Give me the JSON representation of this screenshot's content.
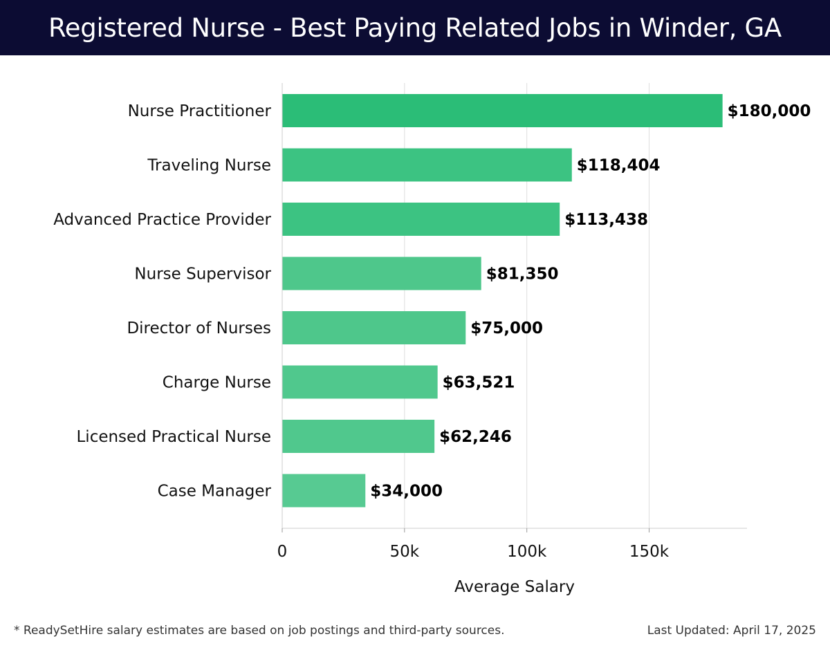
{
  "header": {
    "title": "Registered Nurse - Best Paying Related Jobs in Winder, GA"
  },
  "footer": {
    "note": "* ReadySetHire salary estimates are based on job postings and third-party sources.",
    "updated": "Last Updated: April 17, 2025"
  },
  "colors": {
    "header_bg": "#0c0c33",
    "bar_colors": [
      "#2bbd77",
      "#3cc382",
      "#3cc382",
      "#4ec78b",
      "#4ec78b",
      "#50c88d",
      "#50c88d",
      "#57ca92"
    ],
    "grid": "#dddddd"
  },
  "chart_data": {
    "type": "bar",
    "orientation": "horizontal",
    "categories": [
      "Nurse Practitioner",
      "Traveling Nurse",
      "Advanced Practice Provider",
      "Nurse Supervisor",
      "Director of Nurses",
      "Charge Nurse",
      "Licensed Practical Nurse",
      "Case Manager"
    ],
    "values": [
      180000,
      118404,
      113438,
      81350,
      75000,
      63521,
      62246,
      34000
    ],
    "value_labels": [
      "$180,000",
      "$118,404",
      "$113,438",
      "$81,350",
      "$75,000",
      "$63,521",
      "$62,246",
      "$34,000"
    ],
    "xlabel": "Average Salary",
    "ylabel": "",
    "xlim": [
      0,
      190000
    ],
    "xticks": [
      0,
      50000,
      100000,
      150000
    ],
    "xtick_labels": [
      "0",
      "50k",
      "100k",
      "150k"
    ],
    "grid": "vertical"
  }
}
